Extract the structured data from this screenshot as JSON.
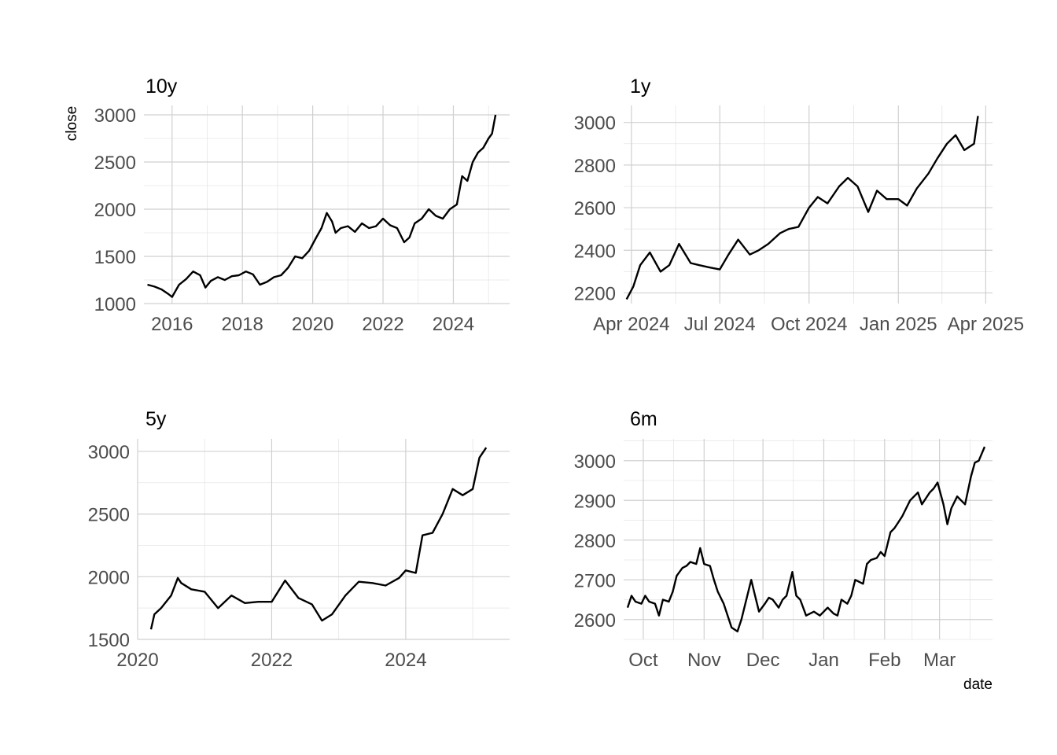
{
  "chart_data": [
    {
      "type": "line",
      "title": "10y",
      "ylabel": "close",
      "xlabel": "",
      "x_type": "year",
      "xlim": [
        2015.2,
        2025.6
      ],
      "ylim": [
        1000,
        3100
      ],
      "xticks": [
        2016,
        2018,
        2020,
        2022,
        2024
      ],
      "xtick_labels": [
        "2016",
        "2018",
        "2020",
        "2022",
        "2024"
      ],
      "yticks": [
        1000,
        1500,
        2000,
        2500,
        3000
      ],
      "ytick_labels": [
        "1000",
        "1500",
        "2000",
        "2500",
        "3000"
      ],
      "grid": true,
      "x": [
        2015.3,
        2015.5,
        2015.7,
        2015.9,
        2016.0,
        2016.2,
        2016.4,
        2016.6,
        2016.8,
        2016.95,
        2017.1,
        2017.3,
        2017.5,
        2017.7,
        2017.9,
        2018.1,
        2018.3,
        2018.5,
        2018.7,
        2018.9,
        2019.1,
        2019.3,
        2019.5,
        2019.7,
        2019.9,
        2020.1,
        2020.25,
        2020.4,
        2020.55,
        2020.65,
        2020.8,
        2021.0,
        2021.2,
        2021.4,
        2021.6,
        2021.8,
        2022.0,
        2022.2,
        2022.4,
        2022.6,
        2022.75,
        2022.9,
        2023.1,
        2023.3,
        2023.5,
        2023.7,
        2023.9,
        2024.1,
        2024.25,
        2024.4,
        2024.55,
        2024.7,
        2024.85,
        2025.0,
        2025.1,
        2025.2
      ],
      "values": [
        1200,
        1180,
        1150,
        1100,
        1070,
        1200,
        1260,
        1340,
        1300,
        1170,
        1240,
        1280,
        1250,
        1290,
        1300,
        1340,
        1310,
        1200,
        1230,
        1280,
        1300,
        1380,
        1500,
        1480,
        1560,
        1700,
        1800,
        1960,
        1870,
        1750,
        1800,
        1820,
        1760,
        1850,
        1800,
        1820,
        1900,
        1830,
        1800,
        1650,
        1700,
        1850,
        1900,
        2000,
        1930,
        1900,
        2000,
        2050,
        2350,
        2300,
        2500,
        2600,
        2650,
        2750,
        2800,
        3000
      ]
    },
    {
      "type": "line",
      "title": "1y",
      "ylabel": "",
      "xlabel": "",
      "x_type": "date",
      "xlim": [
        "2024-03-24",
        "2025-04-08"
      ],
      "ylim": [
        2150,
        3080
      ],
      "xticks": [
        "2024-04-01",
        "2024-07-01",
        "2024-10-01",
        "2025-01-01",
        "2025-04-01"
      ],
      "xtick_labels": [
        "Apr 2024",
        "Jul 2024",
        "Oct 2024",
        "Jan 2025",
        "Apr 2025"
      ],
      "yticks": [
        2200,
        2400,
        2600,
        2800,
        3000
      ],
      "ytick_labels": [
        "2200",
        "2400",
        "2600",
        "2800",
        "3000"
      ],
      "grid": true,
      "x": [
        "2024-03-27",
        "2024-04-03",
        "2024-04-10",
        "2024-04-20",
        "2024-05-01",
        "2024-05-10",
        "2024-05-20",
        "2024-06-01",
        "2024-06-10",
        "2024-06-20",
        "2024-07-01",
        "2024-07-10",
        "2024-07-20",
        "2024-08-01",
        "2024-08-10",
        "2024-08-20",
        "2024-09-01",
        "2024-09-10",
        "2024-09-20",
        "2024-10-01",
        "2024-10-10",
        "2024-10-20",
        "2024-11-01",
        "2024-11-10",
        "2024-11-20",
        "2024-12-01",
        "2024-12-10",
        "2024-12-20",
        "2025-01-01",
        "2025-01-10",
        "2025-01-20",
        "2025-02-01",
        "2025-02-10",
        "2025-02-20",
        "2025-03-01",
        "2025-03-10",
        "2025-03-20",
        "2025-03-24"
      ],
      "values": [
        2170,
        2230,
        2330,
        2390,
        2300,
        2330,
        2430,
        2340,
        2330,
        2320,
        2310,
        2380,
        2450,
        2380,
        2400,
        2430,
        2480,
        2500,
        2510,
        2600,
        2650,
        2620,
        2700,
        2740,
        2700,
        2580,
        2680,
        2640,
        2640,
        2610,
        2690,
        2760,
        2830,
        2900,
        2940,
        2870,
        2900,
        3030
      ]
    },
    {
      "type": "line",
      "title": "5y",
      "ylabel": "",
      "xlabel": "",
      "x_type": "year",
      "xlim": [
        2020.0,
        2025.55
      ],
      "ylim": [
        1500,
        3100
      ],
      "xticks": [
        2020,
        2022,
        2024
      ],
      "xtick_labels": [
        "2020",
        "2022",
        "2024"
      ],
      "yticks": [
        1500,
        2000,
        2500,
        3000
      ],
      "ytick_labels": [
        "1500",
        "2000",
        "2500",
        "3000"
      ],
      "grid": true,
      "x": [
        2020.2,
        2020.25,
        2020.35,
        2020.5,
        2020.6,
        2020.65,
        2020.8,
        2021.0,
        2021.2,
        2021.4,
        2021.6,
        2021.8,
        2022.0,
        2022.2,
        2022.4,
        2022.6,
        2022.75,
        2022.9,
        2023.1,
        2023.3,
        2023.5,
        2023.7,
        2023.9,
        2024.0,
        2024.15,
        2024.25,
        2024.4,
        2024.55,
        2024.7,
        2024.85,
        2025.0,
        2025.1,
        2025.2
      ],
      "values": [
        1580,
        1700,
        1750,
        1850,
        1990,
        1950,
        1900,
        1880,
        1750,
        1850,
        1790,
        1800,
        1800,
        1970,
        1830,
        1780,
        1650,
        1700,
        1850,
        1960,
        1950,
        1930,
        1990,
        2050,
        2030,
        2330,
        2350,
        2500,
        2700,
        2650,
        2700,
        2950,
        3030
      ]
    },
    {
      "type": "line",
      "title": "6m",
      "ylabel": "",
      "xlabel": "date",
      "x_type": "date",
      "xlim": [
        "2024-09-21",
        "2025-03-28"
      ],
      "ylim": [
        2550,
        3055
      ],
      "xticks": [
        "2024-10-01",
        "2024-11-01",
        "2024-12-01",
        "2025-01-01",
        "2025-02-01",
        "2025-03-01"
      ],
      "xtick_labels": [
        "Oct",
        "Nov",
        "Dec",
        "Jan",
        "Feb",
        "Mar"
      ],
      "yticks": [
        2600,
        2700,
        2800,
        2900,
        3000
      ],
      "ytick_labels": [
        "2600",
        "2700",
        "2800",
        "2900",
        "3000"
      ],
      "grid": true,
      "x": [
        "2024-09-23",
        "2024-09-25",
        "2024-09-27",
        "2024-09-30",
        "2024-10-02",
        "2024-10-04",
        "2024-10-07",
        "2024-10-09",
        "2024-10-11",
        "2024-10-14",
        "2024-10-16",
        "2024-10-18",
        "2024-10-21",
        "2024-10-23",
        "2024-10-25",
        "2024-10-28",
        "2024-10-30",
        "2024-11-01",
        "2024-11-04",
        "2024-11-06",
        "2024-11-08",
        "2024-11-11",
        "2024-11-13",
        "2024-11-15",
        "2024-11-18",
        "2024-11-20",
        "2024-11-22",
        "2024-11-25",
        "2024-11-27",
        "2024-11-29",
        "2024-12-02",
        "2024-12-04",
        "2024-12-06",
        "2024-12-09",
        "2024-12-11",
        "2024-12-13",
        "2024-12-16",
        "2024-12-18",
        "2024-12-20",
        "2024-12-23",
        "2024-12-27",
        "2024-12-30",
        "2025-01-03",
        "2025-01-06",
        "2025-01-08",
        "2025-01-10",
        "2025-01-13",
        "2025-01-15",
        "2025-01-17",
        "2025-01-21",
        "2025-01-23",
        "2025-01-25",
        "2025-01-28",
        "2025-01-30",
        "2025-02-01",
        "2025-02-04",
        "2025-02-06",
        "2025-02-10",
        "2025-02-12",
        "2025-02-14",
        "2025-02-18",
        "2025-02-20",
        "2025-02-24",
        "2025-02-26",
        "2025-02-28",
        "2025-03-03",
        "2025-03-05",
        "2025-03-07",
        "2025-03-10",
        "2025-03-12",
        "2025-03-14",
        "2025-03-17",
        "2025-03-19",
        "2025-03-21",
        "2025-03-24"
      ],
      "values": [
        2630,
        2660,
        2645,
        2640,
        2660,
        2645,
        2640,
        2610,
        2650,
        2645,
        2670,
        2710,
        2730,
        2735,
        2745,
        2740,
        2780,
        2740,
        2735,
        2700,
        2670,
        2640,
        2610,
        2580,
        2570,
        2600,
        2640,
        2700,
        2660,
        2620,
        2640,
        2655,
        2650,
        2630,
        2650,
        2660,
        2720,
        2660,
        2650,
        2610,
        2620,
        2610,
        2630,
        2615,
        2610,
        2650,
        2640,
        2660,
        2700,
        2690,
        2740,
        2750,
        2755,
        2770,
        2760,
        2820,
        2830,
        2860,
        2880,
        2900,
        2920,
        2890,
        2920,
        2930,
        2945,
        2890,
        2840,
        2880,
        2910,
        2900,
        2890,
        2960,
        2995,
        3000,
        3035
      ]
    }
  ]
}
